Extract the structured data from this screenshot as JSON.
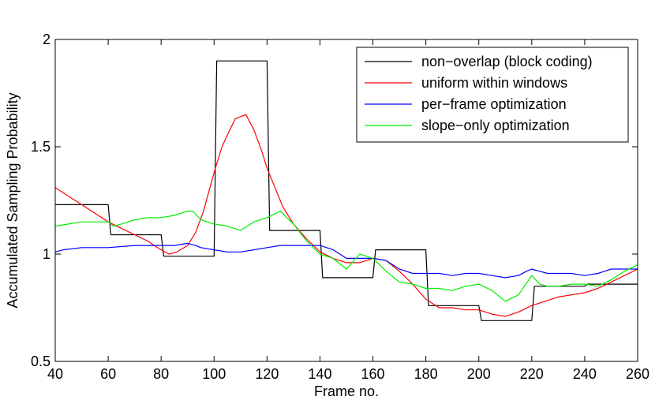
{
  "chart_data": {
    "type": "line",
    "title": "",
    "xlabel": "Frame no.",
    "ylabel": "Accumulated Sampling Probability",
    "xlim": [
      40,
      260
    ],
    "ylim": [
      0.5,
      2
    ],
    "xticks": [
      40,
      60,
      80,
      100,
      120,
      140,
      160,
      180,
      200,
      220,
      240,
      260
    ],
    "yticks": [
      0.5,
      1,
      1.5,
      2
    ],
    "ytick_labels": [
      "0.5",
      "1",
      "1.5",
      "2"
    ],
    "grid": false,
    "legend_position": "top-right",
    "series": [
      {
        "name": "non−overlap (block coding)",
        "color": "#000000",
        "step": true,
        "points": [
          [
            40,
            1.23
          ],
          [
            60,
            1.23
          ],
          [
            61,
            1.09
          ],
          [
            80,
            1.09
          ],
          [
            81,
            0.99
          ],
          [
            100,
            0.99
          ],
          [
            101,
            1.9
          ],
          [
            120,
            1.9
          ],
          [
            121,
            1.11
          ],
          [
            140,
            1.11
          ],
          [
            141,
            0.89
          ],
          [
            160,
            0.89
          ],
          [
            161,
            1.02
          ],
          [
            180,
            1.02
          ],
          [
            181,
            0.76
          ],
          [
            200,
            0.76
          ],
          [
            201,
            0.69
          ],
          [
            220,
            0.69
          ],
          [
            221,
            0.85
          ],
          [
            240,
            0.85
          ],
          [
            241,
            0.86
          ],
          [
            260,
            0.86
          ]
        ]
      },
      {
        "name": "uniform within windows",
        "color": "#ff0000",
        "step": false,
        "points": [
          [
            40,
            1.31
          ],
          [
            45,
            1.27
          ],
          [
            50,
            1.23
          ],
          [
            55,
            1.19
          ],
          [
            60,
            1.15
          ],
          [
            65,
            1.12
          ],
          [
            70,
            1.09
          ],
          [
            75,
            1.06
          ],
          [
            80,
            1.02
          ],
          [
            83,
            1.0
          ],
          [
            86,
            1.01
          ],
          [
            90,
            1.04
          ],
          [
            93,
            1.1
          ],
          [
            96,
            1.2
          ],
          [
            100,
            1.38
          ],
          [
            103,
            1.5
          ],
          [
            106,
            1.58
          ],
          [
            108,
            1.63
          ],
          [
            112,
            1.65
          ],
          [
            115,
            1.58
          ],
          [
            118,
            1.48
          ],
          [
            120,
            1.4
          ],
          [
            123,
            1.31
          ],
          [
            126,
            1.22
          ],
          [
            130,
            1.14
          ],
          [
            135,
            1.07
          ],
          [
            140,
            1.01
          ],
          [
            145,
            0.98
          ],
          [
            150,
            0.96
          ],
          [
            155,
            0.96
          ],
          [
            160,
            0.98
          ],
          [
            165,
            0.97
          ],
          [
            170,
            0.92
          ],
          [
            175,
            0.86
          ],
          [
            180,
            0.79
          ],
          [
            185,
            0.75
          ],
          [
            190,
            0.75
          ],
          [
            195,
            0.74
          ],
          [
            200,
            0.74
          ],
          [
            205,
            0.72
          ],
          [
            210,
            0.71
          ],
          [
            215,
            0.73
          ],
          [
            220,
            0.76
          ],
          [
            225,
            0.78
          ],
          [
            230,
            0.8
          ],
          [
            235,
            0.81
          ],
          [
            240,
            0.82
          ],
          [
            245,
            0.84
          ],
          [
            250,
            0.87
          ],
          [
            255,
            0.9
          ],
          [
            260,
            0.93
          ]
        ]
      },
      {
        "name": "per−frame optimization",
        "color": "#0000ff",
        "step": false,
        "points": [
          [
            40,
            1.01
          ],
          [
            43,
            1.02
          ],
          [
            50,
            1.03
          ],
          [
            60,
            1.03
          ],
          [
            70,
            1.04
          ],
          [
            80,
            1.04
          ],
          [
            85,
            1.04
          ],
          [
            90,
            1.05
          ],
          [
            93,
            1.04
          ],
          [
            95,
            1.03
          ],
          [
            100,
            1.02
          ],
          [
            105,
            1.01
          ],
          [
            110,
            1.01
          ],
          [
            115,
            1.02
          ],
          [
            120,
            1.03
          ],
          [
            125,
            1.04
          ],
          [
            130,
            1.04
          ],
          [
            135,
            1.04
          ],
          [
            140,
            1.04
          ],
          [
            145,
            1.02
          ],
          [
            150,
            0.98
          ],
          [
            155,
            0.98
          ],
          [
            160,
            0.98
          ],
          [
            165,
            0.97
          ],
          [
            170,
            0.93
          ],
          [
            175,
            0.91
          ],
          [
            180,
            0.91
          ],
          [
            185,
            0.91
          ],
          [
            190,
            0.9
          ],
          [
            195,
            0.91
          ],
          [
            200,
            0.91
          ],
          [
            205,
            0.9
          ],
          [
            210,
            0.89
          ],
          [
            215,
            0.9
          ],
          [
            218,
            0.92
          ],
          [
            220,
            0.93
          ],
          [
            223,
            0.92
          ],
          [
            226,
            0.91
          ],
          [
            230,
            0.91
          ],
          [
            235,
            0.91
          ],
          [
            240,
            0.9
          ],
          [
            245,
            0.91
          ],
          [
            250,
            0.93
          ],
          [
            255,
            0.93
          ],
          [
            260,
            0.93
          ]
        ]
      },
      {
        "name": "slope−only optimization",
        "color": "#00ee00",
        "step": false,
        "points": [
          [
            40,
            1.13
          ],
          [
            45,
            1.14
          ],
          [
            50,
            1.15
          ],
          [
            55,
            1.15
          ],
          [
            60,
            1.15
          ],
          [
            62,
            1.13
          ],
          [
            65,
            1.14
          ],
          [
            70,
            1.16
          ],
          [
            75,
            1.17
          ],
          [
            80,
            1.17
          ],
          [
            85,
            1.18
          ],
          [
            90,
            1.2
          ],
          [
            92,
            1.2
          ],
          [
            95,
            1.16
          ],
          [
            100,
            1.14
          ],
          [
            105,
            1.13
          ],
          [
            110,
            1.11
          ],
          [
            115,
            1.15
          ],
          [
            120,
            1.17
          ],
          [
            125,
            1.2
          ],
          [
            130,
            1.14
          ],
          [
            135,
            1.06
          ],
          [
            140,
            1.0
          ],
          [
            145,
            0.98
          ],
          [
            150,
            0.93
          ],
          [
            155,
            1.0
          ],
          [
            160,
            0.98
          ],
          [
            165,
            0.92
          ],
          [
            170,
            0.87
          ],
          [
            175,
            0.86
          ],
          [
            180,
            0.84
          ],
          [
            185,
            0.84
          ],
          [
            190,
            0.83
          ],
          [
            195,
            0.85
          ],
          [
            200,
            0.86
          ],
          [
            205,
            0.83
          ],
          [
            210,
            0.78
          ],
          [
            215,
            0.81
          ],
          [
            220,
            0.9
          ],
          [
            223,
            0.86
          ],
          [
            226,
            0.85
          ],
          [
            230,
            0.85
          ],
          [
            235,
            0.86
          ],
          [
            240,
            0.86
          ],
          [
            245,
            0.85
          ],
          [
            250,
            0.88
          ],
          [
            255,
            0.92
          ],
          [
            260,
            0.95
          ]
        ]
      }
    ]
  }
}
